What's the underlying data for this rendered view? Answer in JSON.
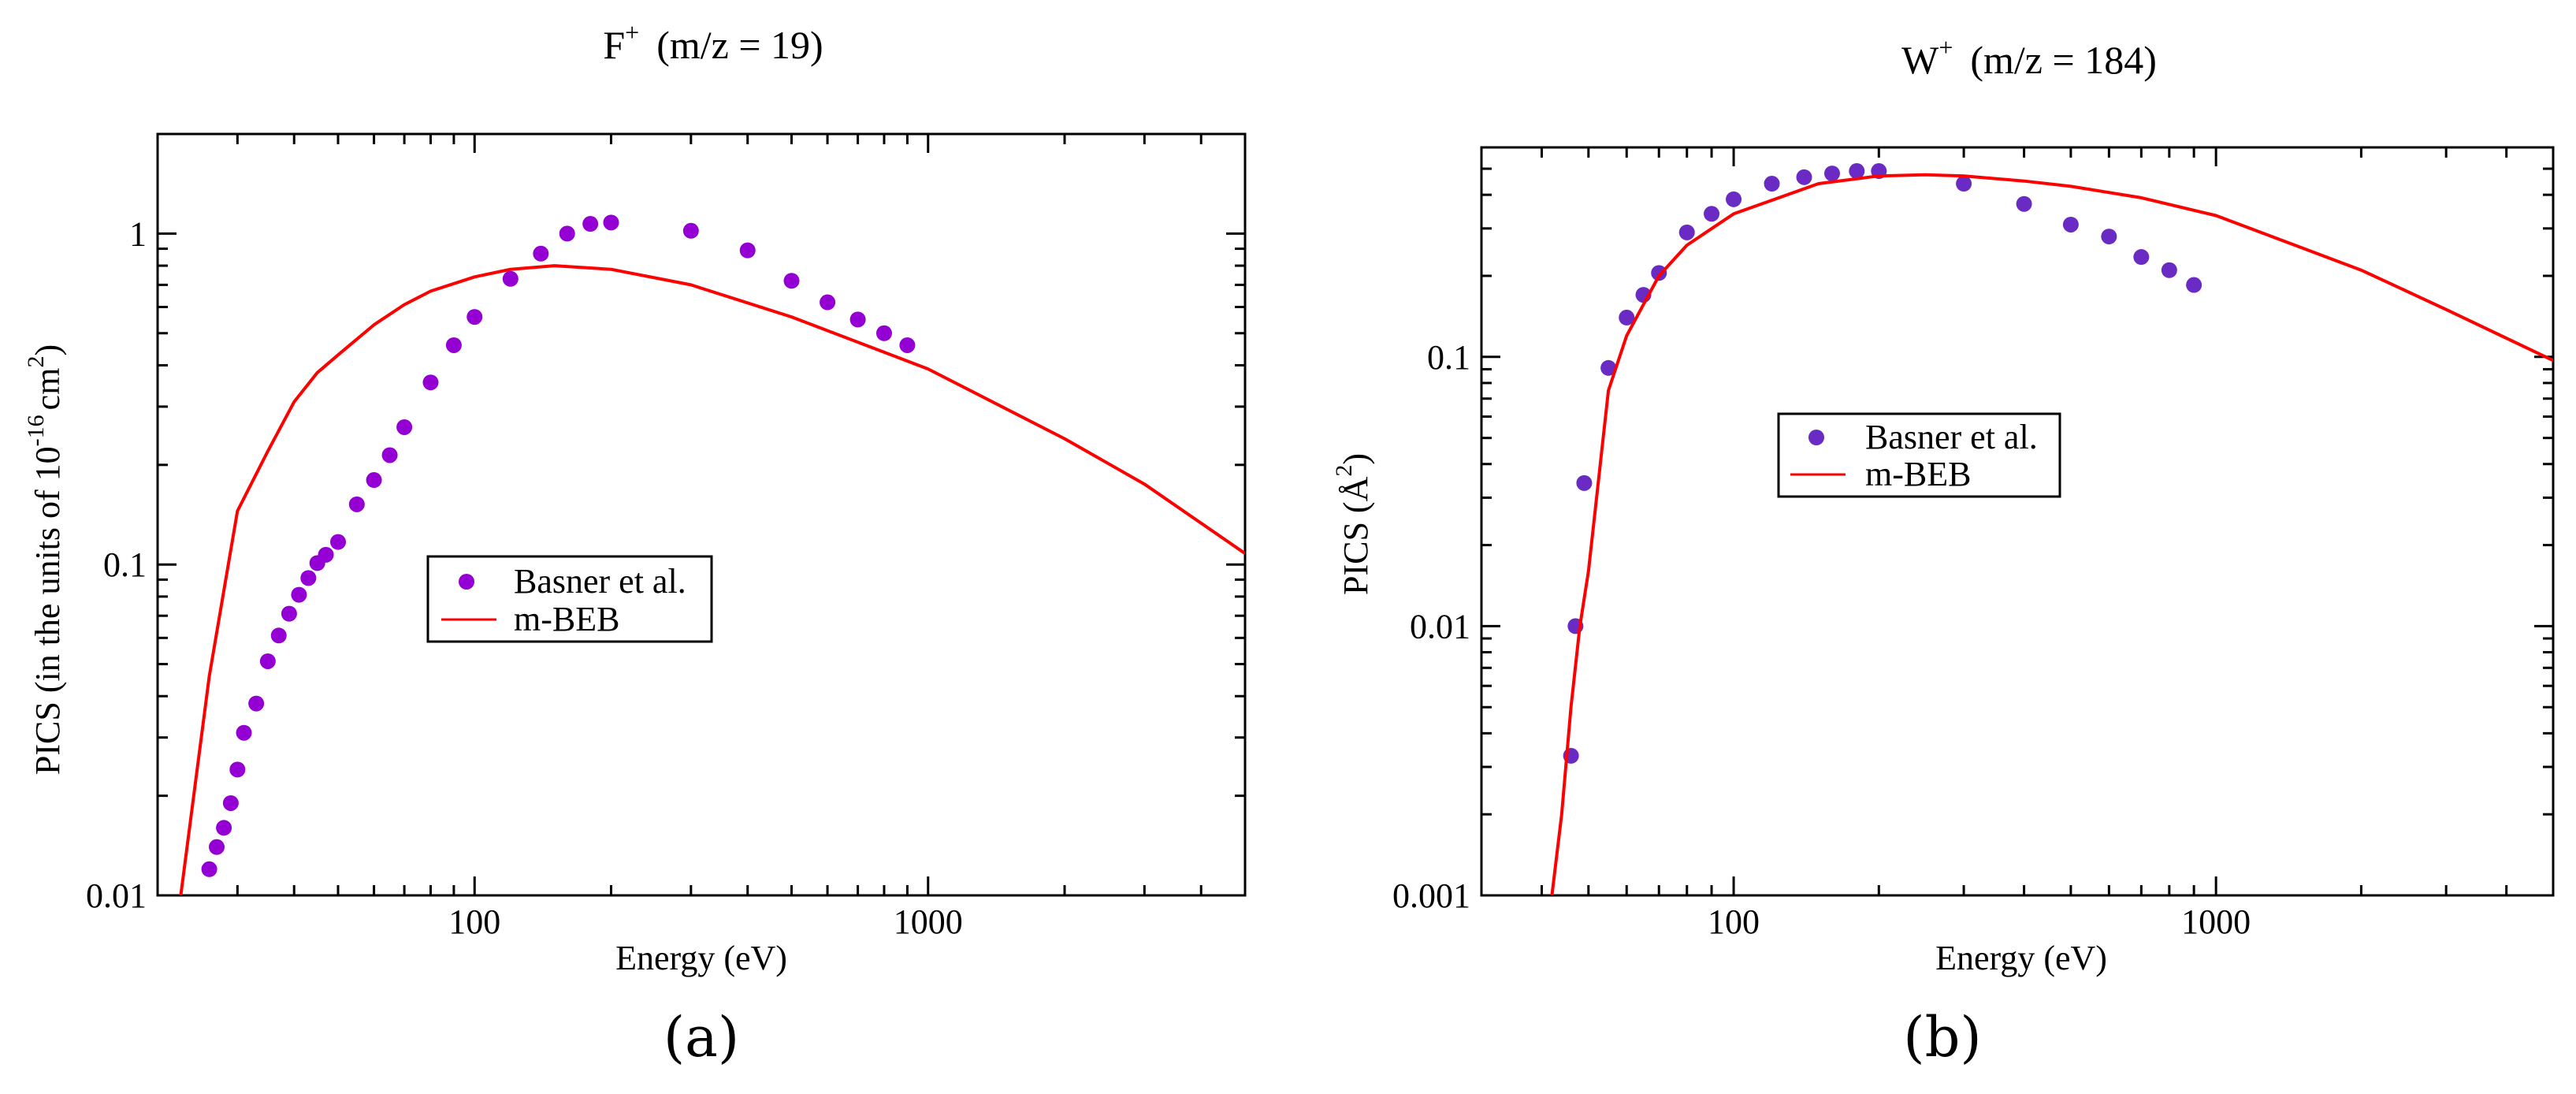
{
  "chart_data": [
    {
      "type": "scatter",
      "panel_label": "(a)",
      "title": "F",
      "title_sup": "+",
      "title_suffix": "(m/z = 19)",
      "xlabel": "Energy (eV)",
      "ylabel": "PICS (in the units of 10",
      "ylabel_sup": "-16",
      "ylabel_mid": "cm",
      "ylabel_sup2": "2",
      "ylabel_end": ")",
      "xscale": "log",
      "yscale": "log",
      "xlim": [
        20,
        5000
      ],
      "ylim": [
        0.01,
        2
      ],
      "x_tick_labels": [
        {
          "v": 100,
          "label": "100"
        },
        {
          "v": 1000,
          "label": "1000"
        }
      ],
      "y_tick_labels": [
        {
          "v": 0.01,
          "label": "0.01"
        },
        {
          "v": 0.1,
          "label": "0.1"
        },
        {
          "v": 1,
          "label": "1"
        }
      ],
      "legend": {
        "position": "center-left",
        "items": [
          "Basner et al.",
          "m-BEB"
        ]
      },
      "series": [
        {
          "name": "Basner et al.",
          "kind": "points",
          "color": "#9400d3",
          "x": [
            26,
            27,
            28,
            29,
            30,
            31,
            33,
            35,
            37,
            39,
            41,
            43,
            45,
            47,
            50,
            55,
            60,
            65,
            70,
            80,
            90,
            100,
            120,
            140,
            160,
            180,
            200,
            300,
            400,
            500,
            600,
            700,
            800,
            900
          ],
          "y": [
            0.012,
            0.014,
            0.016,
            0.019,
            0.024,
            0.031,
            0.038,
            0.051,
            0.061,
            0.071,
            0.081,
            0.091,
            0.101,
            0.107,
            0.117,
            0.152,
            0.18,
            0.214,
            0.26,
            0.355,
            0.46,
            0.56,
            0.73,
            0.87,
            1.0,
            1.07,
            1.08,
            1.02,
            0.89,
            0.72,
            0.62,
            0.55,
            0.5,
            0.46
          ]
        },
        {
          "name": "m-BEB",
          "kind": "line",
          "color": "#ff0000",
          "x": [
            22.5,
            26,
            30,
            35,
            40,
            45,
            50,
            60,
            70,
            80,
            100,
            120,
            150,
            200,
            300,
            500,
            1000,
            2000,
            3000,
            5000
          ],
          "y": [
            0.01,
            0.046,
            0.145,
            0.22,
            0.31,
            0.38,
            0.43,
            0.53,
            0.61,
            0.67,
            0.74,
            0.78,
            0.8,
            0.78,
            0.7,
            0.56,
            0.39,
            0.24,
            0.175,
            0.108
          ]
        }
      ]
    },
    {
      "type": "scatter",
      "panel_label": "(b)",
      "title": "W",
      "title_sup": "+",
      "title_suffix": "(m/z = 184)",
      "xlabel": "Energy (eV)",
      "ylabel": "PICS (Å",
      "ylabel_sup": "2",
      "ylabel_end": ")",
      "xscale": "log",
      "yscale": "log",
      "xlim": [
        30,
        5000
      ],
      "ylim": [
        0.001,
        0.6
      ],
      "x_tick_labels": [
        {
          "v": 100,
          "label": "100"
        },
        {
          "v": 1000,
          "label": "1000"
        }
      ],
      "y_tick_labels": [
        {
          "v": 0.001,
          "label": "0.001"
        },
        {
          "v": 0.01,
          "label": "0.01"
        },
        {
          "v": 0.1,
          "label": "0.1"
        }
      ],
      "legend": {
        "position": "center",
        "items": [
          "Basner et al.",
          "m-BEB"
        ]
      },
      "series": [
        {
          "name": "Basner et al.",
          "kind": "points",
          "color": "#6a2bc4",
          "x": [
            46,
            47,
            49,
            55,
            60,
            65,
            70,
            80,
            90,
            100,
            120,
            140,
            160,
            180,
            200,
            300,
            400,
            500,
            600,
            700,
            800,
            900
          ],
          "y": [
            0.0033,
            0.01,
            0.034,
            0.091,
            0.14,
            0.17,
            0.205,
            0.29,
            0.34,
            0.385,
            0.44,
            0.465,
            0.48,
            0.49,
            0.49,
            0.44,
            0.37,
            0.31,
            0.28,
            0.235,
            0.21,
            0.185
          ]
        },
        {
          "name": "m-BEB",
          "kind": "line",
          "color": "#ff0000",
          "x": [
            42,
            44,
            46,
            48,
            50,
            55,
            60,
            70,
            80,
            100,
            150,
            200,
            250,
            300,
            400,
            500,
            700,
            1000,
            2000,
            3000,
            5000
          ],
          "y": [
            0.001,
            0.002,
            0.005,
            0.01,
            0.016,
            0.075,
            0.12,
            0.2,
            0.26,
            0.34,
            0.44,
            0.47,
            0.475,
            0.47,
            0.45,
            0.43,
            0.39,
            0.335,
            0.21,
            0.15,
            0.097
          ]
        }
      ]
    }
  ]
}
